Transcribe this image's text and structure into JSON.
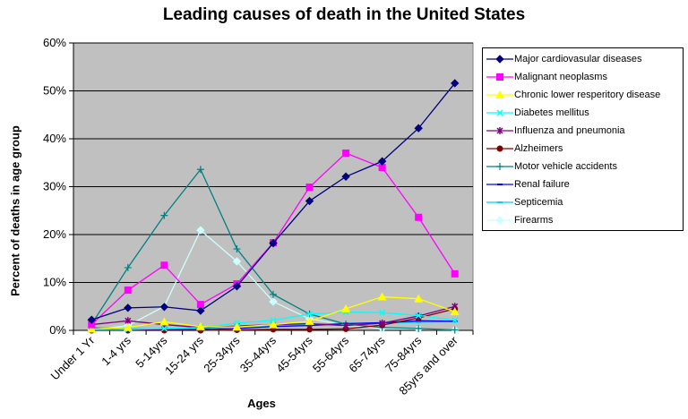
{
  "chart_data": {
    "type": "line",
    "title": "Leading causes of death in the United States",
    "xlabel": "Ages",
    "ylabel": "Percent of deaths in age group",
    "ylim": [
      0,
      60
    ],
    "yticks": [
      "0%",
      "10%",
      "20%",
      "30%",
      "40%",
      "50%",
      "60%"
    ],
    "y_tick_values": [
      0,
      10,
      20,
      30,
      40,
      50,
      60
    ],
    "grid": true,
    "legend_position": "right",
    "plot_background": "#C0C0C0",
    "categories": [
      "Under 1 Yr",
      "1-4 yrs",
      "5-14yrs",
      "15-24 yrs",
      "25-34yrs",
      "35-44yrs",
      "45-54yrs",
      "55-64yrs",
      "65-74yrs",
      "75-84yrs",
      "85yrs and over"
    ],
    "series": [
      {
        "name": "Major cardiovasular diseases",
        "color": "#000080",
        "marker": "diamond",
        "values": [
          2.2,
          4.7,
          4.9,
          4.1,
          9.2,
          18.2,
          27.0,
          32.1,
          35.3,
          42.2,
          51.6
        ]
      },
      {
        "name": "Malignant neoplasms",
        "color": "#FF00FF",
        "marker": "square",
        "values": [
          1.2,
          8.4,
          13.6,
          5.4,
          9.7,
          18.3,
          29.9,
          37.0,
          34.0,
          23.6,
          11.8
        ]
      },
      {
        "name": "Chronic lower resperitory disease",
        "color": "#FFFF00",
        "marker": "triangle",
        "values": [
          0.3,
          0.6,
          1.8,
          0.8,
          0.7,
          1.2,
          1.9,
          4.5,
          7.0,
          6.6,
          3.9
        ]
      },
      {
        "name": "Diabetes mellitus",
        "color": "#00FFFF",
        "marker": "x",
        "values": [
          0.2,
          0.2,
          0.4,
          0.6,
          1.5,
          2.1,
          3.4,
          3.8,
          3.7,
          3.1,
          2.1
        ]
      },
      {
        "name": "Influenza and pneumonia",
        "color": "#800080",
        "marker": "star",
        "values": [
          1.2,
          2.0,
          1.2,
          0.6,
          0.9,
          1.2,
          1.4,
          1.0,
          1.5,
          3.0,
          5.0
        ]
      },
      {
        "name": "Alzheimers",
        "color": "#800000",
        "marker": "circle",
        "values": [
          0.0,
          0.0,
          0.0,
          0.0,
          0.1,
          0.2,
          0.2,
          0.3,
          1.1,
          2.6,
          4.5
        ]
      },
      {
        "name": "Motor vehicle accidents",
        "color": "#008080",
        "marker": "plus",
        "values": [
          1.3,
          13.1,
          24.0,
          33.6,
          17.0,
          7.5,
          3.4,
          1.3,
          0.6,
          0.4,
          0.1
        ]
      },
      {
        "name": "Renal failure",
        "color": "#0000FF",
        "marker": "dash",
        "values": [
          0.5,
          0.1,
          0.1,
          0.2,
          0.4,
          0.8,
          1.0,
          1.4,
          1.6,
          2.0,
          1.9
        ]
      },
      {
        "name": "Septicemia",
        "color": "#00CCFF",
        "marker": "dash",
        "values": [
          0.6,
          0.4,
          0.3,
          0.4,
          0.8,
          1.0,
          1.2,
          1.5,
          1.5,
          1.7,
          1.8
        ]
      },
      {
        "name": "Firearms",
        "color": "#CCFFFF",
        "marker": "diamond",
        "values": [
          0.1,
          1.0,
          5.0,
          20.9,
          14.4,
          6.0,
          2.4,
          1.1,
          0.4,
          0.3,
          0.1
        ]
      }
    ]
  }
}
